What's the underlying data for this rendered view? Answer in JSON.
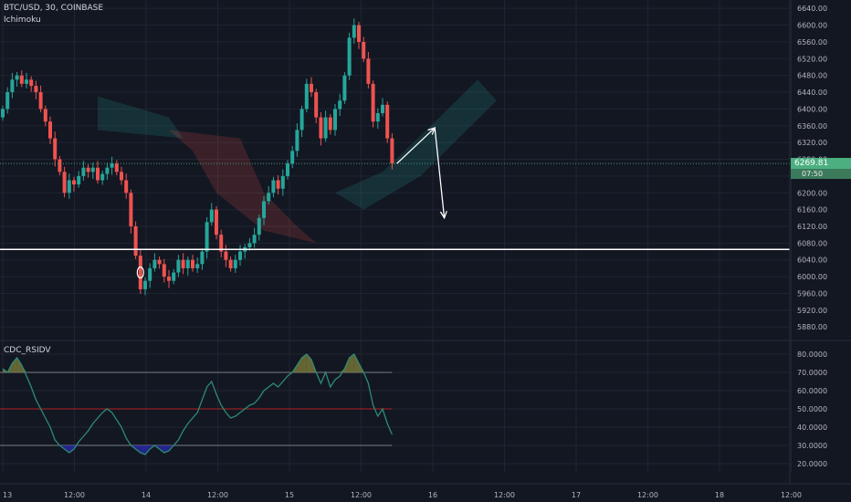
{
  "header": {
    "symbol": "BTC/USD, 30, COINBASE",
    "indicator": "Ichimoku"
  },
  "rsi_panel": {
    "title": "CDC_RSIDV"
  },
  "last_price": {
    "value": "6269.81",
    "countdown": "07:50"
  },
  "colors": {
    "background": "#131722",
    "grid": "#1f2433",
    "up": "#26a69a",
    "down": "#ef5350",
    "rsi_line": "#2e8b74",
    "overbought_fill": "#7a7a3a",
    "oversold_fill": "#2929a8",
    "midline": "#b22222",
    "annotation": "#ffffff"
  },
  "chart_data": [
    {
      "type": "candlestick",
      "title": "BTC/USD, 30, COINBASE",
      "ylim": [
        5850,
        6660
      ],
      "y_ticks": [
        5880,
        5920,
        5960,
        6000,
        6040,
        6080,
        6120,
        6160,
        6200,
        6240,
        6280,
        6320,
        6360,
        6400,
        6440,
        6480,
        6520,
        6560,
        6600,
        6640
      ],
      "x_tick_labels": [
        "13",
        "12:00",
        "14",
        "12:00",
        "15",
        "12:00",
        "16",
        "12:00",
        "17",
        "12:00",
        "18",
        "12:00"
      ],
      "closes": [
        6400,
        6440,
        6470,
        6480,
        6460,
        6470,
        6455,
        6440,
        6400,
        6370,
        6330,
        6280,
        6250,
        6200,
        6230,
        6220,
        6240,
        6260,
        6250,
        6260,
        6230,
        6245,
        6260,
        6270,
        6250,
        6230,
        6200,
        6120,
        6050,
        5970,
        5990,
        6020,
        6040,
        6030,
        6000,
        5990,
        6010,
        6040,
        6020,
        6040,
        6020,
        6030,
        6060,
        6130,
        6160,
        6100,
        6060,
        6040,
        6020,
        6040,
        6060,
        6070,
        6080,
        6100,
        6140,
        6180,
        6200,
        6230,
        6210,
        6240,
        6270,
        6300,
        6350,
        6400,
        6460,
        6440,
        6380,
        6330,
        6380,
        6350,
        6400,
        6420,
        6480,
        6570,
        6600,
        6560,
        6520,
        6460,
        6370,
        6390,
        6410,
        6330,
        6269.81
      ],
      "horizontal_line": 6065,
      "ichimoku_cloud": [
        {
          "color": "green",
          "points": [
            [
              20,
              6430
            ],
            [
              35,
              6380
            ],
            [
              38,
              6330
            ],
            [
              20,
              6350
            ]
          ]
        },
        {
          "color": "red",
          "points": [
            [
              35,
              6350
            ],
            [
              50,
              6330
            ],
            [
              55,
              6200
            ],
            [
              62,
              6120
            ],
            [
              66,
              6080
            ],
            [
              55,
              6110
            ],
            [
              45,
              6200
            ],
            [
              40,
              6300
            ]
          ]
        },
        {
          "color": "green",
          "points": [
            [
              70,
              6200
            ],
            [
              80,
              6250
            ],
            [
              92,
              6380
            ],
            [
              100,
              6470
            ],
            [
              104,
              6420
            ],
            [
              96,
              6330
            ],
            [
              88,
              6240
            ],
            [
              76,
              6160
            ]
          ]
        }
      ],
      "annotations": [
        {
          "type": "arrow",
          "from": [
            83,
            6269.81
          ],
          "to": [
            91,
            6355
          ]
        },
        {
          "type": "arrow",
          "from": [
            91,
            6355
          ],
          "to": [
            93,
            6140
          ]
        }
      ]
    },
    {
      "type": "line",
      "title": "CDC_RSIDV",
      "ylim": [
        15,
        87
      ],
      "y_ticks": [
        20,
        30,
        40,
        50,
        60,
        70,
        80
      ],
      "y_tick_labels": [
        "20.0000",
        "30.0000",
        "40.0000",
        "50.0000",
        "60.0000",
        "70.0000",
        "80.0000"
      ],
      "levels": {
        "overbought": 70,
        "mid": 50,
        "oversold": 30
      },
      "values": [
        72,
        70,
        75,
        78,
        74,
        68,
        62,
        55,
        50,
        45,
        40,
        33,
        30,
        28,
        26,
        28,
        32,
        35,
        38,
        42,
        45,
        48,
        50,
        48,
        44,
        40,
        34,
        30,
        28,
        26,
        25,
        28,
        30,
        28,
        26,
        27,
        30,
        33,
        38,
        42,
        45,
        48,
        55,
        62,
        65,
        58,
        52,
        48,
        45,
        46,
        48,
        50,
        52,
        53,
        56,
        60,
        62,
        64,
        62,
        65,
        68,
        70,
        74,
        78,
        80,
        77,
        70,
        64,
        70,
        62,
        66,
        68,
        72,
        78,
        80,
        75,
        70,
        64,
        52,
        46,
        50,
        42,
        36
      ]
    }
  ]
}
